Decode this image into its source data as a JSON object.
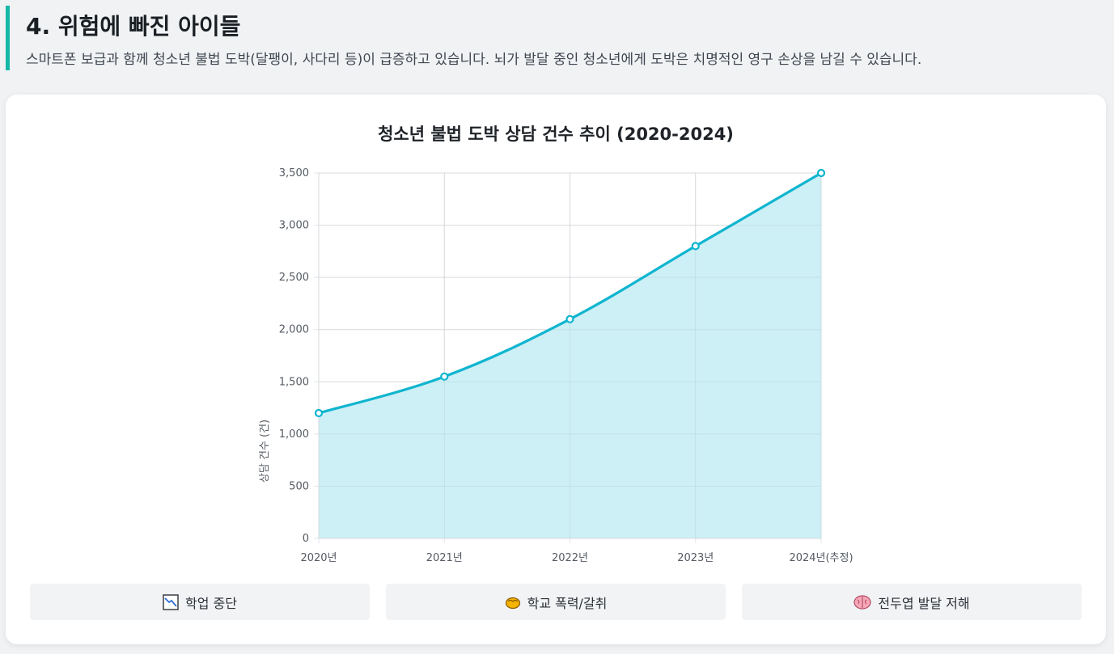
{
  "header": {
    "title": "4. 위험에 빠진 아이들",
    "description": "스마트폰 보급과 함께 청소년 불법 도박(달팽이, 사다리 등)이 급증하고 있습니다. 뇌가 발달 중인 청소년에게 도박은 치명적인 영구 손상을 남길 수 있습니다."
  },
  "colors": {
    "accent": "#14b8a6",
    "line": "#0fb5cf",
    "fill": "#caeef5"
  },
  "chart_data": {
    "type": "area",
    "title": "청소년 불법 도박 상담 건수 추이 (2020-2024)",
    "categories": [
      "2020년",
      "2021년",
      "2022년",
      "2023년",
      "2024년(추정)"
    ],
    "series": [
      {
        "values": [
          1200,
          1550,
          2100,
          2800,
          3500
        ]
      }
    ],
    "xlabel": "",
    "ylabel": "상담 건수 (건)",
    "ylim": [
      0,
      3500
    ],
    "yticks": [
      "0",
      "500",
      "1,000",
      "1,500",
      "2,000",
      "2,500",
      "3,000",
      "3,500"
    ],
    "grid": true,
    "legend": "none"
  },
  "impacts": [
    {
      "icon": "chart-decreasing-icon",
      "label": "학업 중단"
    },
    {
      "icon": "fist-icon",
      "label": "학교 폭력/갈취"
    },
    {
      "icon": "brain-icon",
      "label": "전두엽 발달 저해"
    }
  ]
}
